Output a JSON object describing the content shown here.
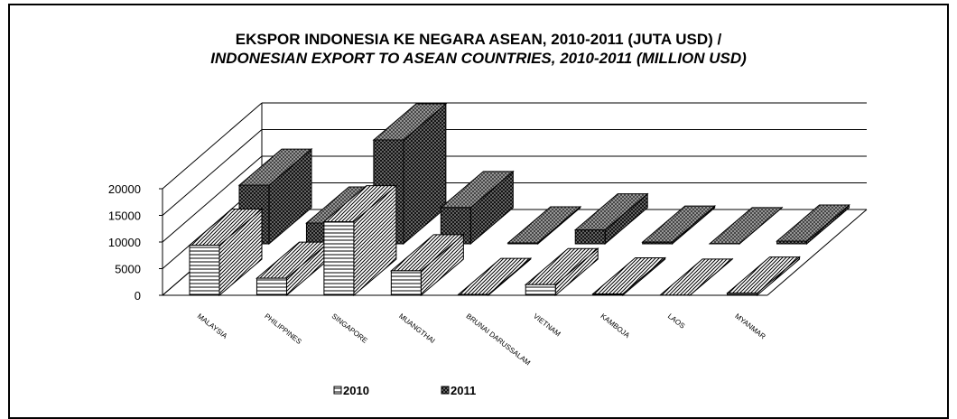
{
  "chart_data": {
    "type": "bar",
    "title": "EKSPOR INDONESIA KE NEGARA ASEAN, 2010-2011 (JUTA USD) /",
    "subtitle": "INDONESIAN EXPORT TO ASEAN COUNTRIES, 2010-2011 (MILLION USD)",
    "categories": [
      "MALAYSIA",
      "PHILIPPINES",
      "SINGAPORE",
      "MUANGTHAI",
      "BRUNAI DARUSSALAM",
      "VIETNAM",
      "KAMBOJA",
      "LAOS",
      "MYANMAR"
    ],
    "series": [
      {
        "name": "2010",
        "values": [
          9400,
          3200,
          13800,
          4600,
          150,
          2000,
          250,
          20,
          400
        ],
        "pattern": "horizontal-lines"
      },
      {
        "name": "2011",
        "values": [
          11000,
          3900,
          19500,
          6800,
          180,
          2600,
          320,
          30,
          500
        ],
        "pattern": "crosshatch"
      }
    ],
    "yticks": [
      0,
      5000,
      10000,
      15000,
      20000
    ],
    "ylim": [
      0,
      20000
    ],
    "xlabel": "",
    "ylabel": "",
    "grid": true,
    "legend_position": "bottom",
    "style": "3d-clustered-bar"
  }
}
